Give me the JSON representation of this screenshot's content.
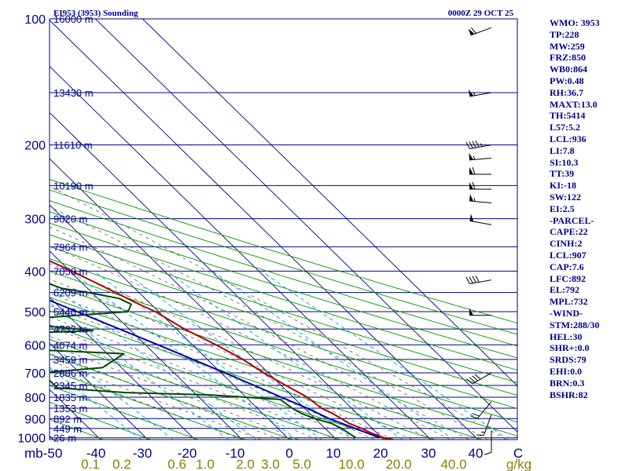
{
  "chart_data": {
    "type": "line",
    "chart_kind": "skew-t log-p sounding",
    "title": "EI953 (3953) Sounding",
    "time_label": "0000Z 29 OCT 25",
    "pressure_axis": {
      "ticks": [
        100,
        200,
        300,
        400,
        500,
        600,
        700,
        800,
        900,
        1000
      ],
      "range": [
        100,
        1000
      ],
      "scale": "log"
    },
    "temperature_axis": {
      "ticks": [
        "-50",
        "-40",
        "-30",
        "-20",
        "-10",
        "0",
        "10",
        "20",
        "30",
        "40"
      ],
      "units_label": "C",
      "left_label": "mb"
    },
    "mixing_ratio_axis": {
      "ticks": [
        "0.1",
        "0.2",
        "0.6",
        "1.0",
        "2.0",
        "3.0",
        "5.0",
        "10.0",
        "20.0",
        "40.0"
      ],
      "units_label": "g/kg"
    },
    "height_labels": [
      {
        "p": 100,
        "text": "16000 m"
      },
      {
        "p": 150,
        "text": "13430 m"
      },
      {
        "p": 200,
        "text": "11610 m"
      },
      {
        "p": 250,
        "text": "10190 m"
      },
      {
        "p": 300,
        "text": "9020 m"
      },
      {
        "p": 350,
        "text": "7964 m"
      },
      {
        "p": 400,
        "text": "7050 m"
      },
      {
        "p": 450,
        "text": "6209 m"
      },
      {
        "p": 500,
        "text": "5440 m"
      },
      {
        "p": 550,
        "text": "4732 m"
      },
      {
        "p": 600,
        "text": "4074 m"
      },
      {
        "p": 650,
        "text": "3459 m"
      },
      {
        "p": 700,
        "text": "2886 m"
      },
      {
        "p": 750,
        "text": "2345 m"
      },
      {
        "p": 800,
        "text": "1835 m"
      },
      {
        "p": 850,
        "text": "1353 m"
      },
      {
        "p": 900,
        "text": "892 m"
      },
      {
        "p": 950,
        "text": "449 m"
      },
      {
        "p": 1000,
        "text": "26 m"
      }
    ],
    "series": [
      {
        "name": "temperature",
        "color": "#b00000",
        "points": [
          [
            1010,
            12
          ],
          [
            1000,
            10.5
          ],
          [
            975,
            8.8
          ],
          [
            950,
            7.8
          ],
          [
            925,
            6.2
          ],
          [
            900,
            5.6
          ],
          [
            875,
            4.8
          ],
          [
            850,
            3.6
          ],
          [
            800,
            3.0
          ],
          [
            750,
            1.0
          ],
          [
            700,
            -1.0
          ],
          [
            650,
            -2.5
          ],
          [
            600,
            -5.0
          ],
          [
            550,
            -8.3
          ],
          [
            500,
            -10.7
          ],
          [
            475,
            -13.0
          ],
          [
            450,
            -15.0
          ],
          [
            400,
            -19.6
          ],
          [
            350,
            -25.6
          ],
          [
            300,
            -33.7
          ],
          [
            275,
            -37.7
          ],
          [
            250,
            -42.5
          ],
          [
            225,
            -46.0
          ],
          [
            200,
            -51.5
          ],
          [
            190,
            -53.2
          ],
          [
            175,
            -55.8
          ],
          [
            160,
            -57.5
          ],
          [
            150,
            -59.0
          ],
          [
            125,
            -65.0
          ],
          [
            100,
            -69.8
          ]
        ]
      },
      {
        "name": "dewpoint",
        "color": "#004800",
        "points": [
          [
            1000,
            4.5
          ],
          [
            950,
            3.5
          ],
          [
            925,
            2.5
          ],
          [
            900,
            0.0
          ],
          [
            875,
            -1.8
          ],
          [
            850,
            -2.6
          ],
          [
            810,
            -3.2
          ],
          [
            790,
            -17.0
          ],
          [
            780,
            -34.5
          ],
          [
            760,
            -48.0
          ],
          [
            700,
            -48.0
          ],
          [
            680,
            -34.0
          ],
          [
            630,
            -26.5
          ],
          [
            615,
            -46.5
          ],
          [
            580,
            -50.3
          ],
          [
            560,
            -38.5
          ],
          [
            555,
            -28.0
          ],
          [
            525,
            -47.0
          ],
          [
            520,
            -39.0
          ],
          [
            500,
            -16.5
          ],
          [
            480,
            -14.2
          ],
          [
            465,
            -15.5
          ],
          [
            450,
            -20.8
          ],
          [
            440,
            -25.5
          ],
          [
            420,
            -28.5
          ],
          [
            400,
            -29.6
          ],
          [
            300,
            -40.4
          ],
          [
            260,
            -46.7
          ],
          [
            250,
            -51.5
          ],
          [
            230,
            -52.2
          ],
          [
            210,
            -58.6
          ],
          [
            190,
            -64.5
          ],
          [
            160,
            -67.8
          ],
          [
            140,
            -70.5
          ],
          [
            125,
            -72.5
          ],
          [
            100,
            -79.4
          ]
        ]
      },
      {
        "name": "parcel",
        "color": "#0000aa",
        "points": [
          [
            1000,
            9.5
          ],
          [
            950,
            6.4
          ],
          [
            900,
            3.0
          ],
          [
            850,
            0.6
          ],
          [
            800,
            -2.5
          ],
          [
            750,
            -5.7
          ],
          [
            700,
            -9.2
          ],
          [
            650,
            -13.1
          ],
          [
            600,
            -17.3
          ],
          [
            550,
            -22.1
          ],
          [
            500,
            -27.3
          ],
          [
            450,
            -33.1
          ],
          [
            400,
            -39.3
          ],
          [
            350,
            -46.8
          ],
          [
            300,
            -55.0
          ],
          [
            250,
            -63.8
          ],
          [
            200,
            -73.8
          ],
          [
            150,
            -84.3
          ],
          [
            135,
            -87.3
          ]
        ]
      }
    ],
    "wind_barbs": [
      {
        "p": 105,
        "dir": 250,
        "spd": 60
      },
      {
        "p": 150,
        "dir": 260,
        "spd": 55
      },
      {
        "p": 200,
        "dir": 260,
        "spd": 45
      },
      {
        "p": 215,
        "dir": 265,
        "spd": 55
      },
      {
        "p": 235,
        "dir": 270,
        "spd": 60
      },
      {
        "p": 255,
        "dir": 270,
        "spd": 60
      },
      {
        "p": 275,
        "dir": 275,
        "spd": 55
      },
      {
        "p": 310,
        "dir": 280,
        "spd": 50
      },
      {
        "p": 420,
        "dir": 260,
        "spd": 40
      },
      {
        "p": 510,
        "dir": 270,
        "spd": 50
      },
      {
        "p": 700,
        "dir": 240,
        "spd": 40
      },
      {
        "p": 820,
        "dir": 220,
        "spd": 20
      },
      {
        "p": 880,
        "dir": 200,
        "spd": 15
      },
      {
        "p": 960,
        "dir": 180,
        "spd": 10
      }
    ],
    "grid": {
      "isobars": [
        100,
        150,
        200,
        250,
        300,
        350,
        400,
        450,
        500,
        550,
        600,
        650,
        700,
        750,
        800,
        850,
        900,
        950,
        1000
      ],
      "isotherms_step": 10,
      "dry_adiabats": [
        -50,
        -40,
        -30,
        -20,
        -10,
        0,
        10,
        20,
        30,
        40,
        50,
        60,
        70,
        80,
        90,
        100,
        110,
        120,
        130
      ],
      "moist_adiabats": [
        -20,
        -16,
        -12,
        -8,
        -4,
        0,
        4,
        8,
        12,
        16,
        20,
        24,
        28,
        32,
        36
      ],
      "mixing_ratios": [
        0.1,
        0.2,
        0.6,
        1.0,
        2.0,
        3.0,
        5.0,
        10.0,
        20.0,
        40.0
      ]
    },
    "colors": {
      "background": "#ffffff",
      "isobar": "#00008b",
      "isotherm": "#00008b",
      "dry_adiabat": "#009900",
      "moist_adiabat": "#707070",
      "mixing_ratio": "#00a0e0",
      "axis_text": "#00008b",
      "mixing_text": "#8b7d00"
    }
  },
  "indices": [
    "WMO: 3953",
    "TP:228",
    "MW:259",
    "FRZ:850",
    "WB0:864",
    "PW:0.48",
    "RH:36.7",
    "MAXT:13.0",
    "TH:5414",
    "L57:5.2",
    "LCL:936",
    "LI:7.8",
    "SI:10.3",
    "TT:39",
    "KI:-18",
    "SW:122",
    "EI:2.5",
    "-PARCEL-",
    "CAPE:22",
    "CINH:2",
    "LCL:907",
    "CAP:7.6",
    "LFC:892",
    "EL:792",
    "MPL:732",
    "-WIND-",
    "STM:288/30",
    "HEL:30",
    "SHR+:0.0",
    "SRDS:79",
    "EHI:0.0",
    "BRN:0.3",
    "BSHR:82"
  ]
}
